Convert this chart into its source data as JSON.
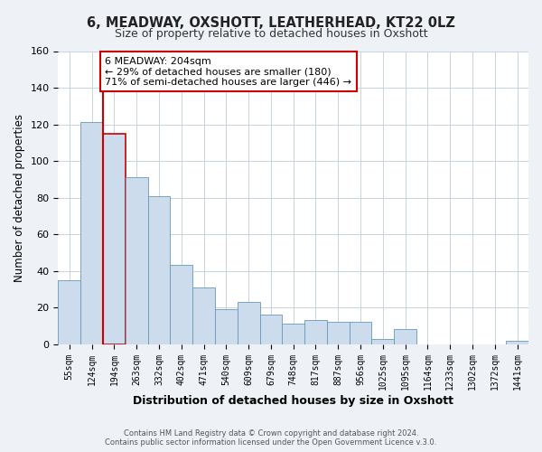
{
  "title1": "6, MEADWAY, OXSHOTT, LEATHERHEAD, KT22 0LZ",
  "title2": "Size of property relative to detached houses in Oxshott",
  "xlabel": "Distribution of detached houses by size in Oxshott",
  "ylabel": "Number of detached properties",
  "footer1": "Contains HM Land Registry data © Crown copyright and database right 2024.",
  "footer2": "Contains public sector information licensed under the Open Government Licence v.3.0.",
  "annotation_line1": "6 MEADWAY: 204sqm",
  "annotation_line2": "← 29% of detached houses are smaller (180)",
  "annotation_line3": "71% of semi-detached houses are larger (446) →",
  "bar_labels": [
    "55sqm",
    "124sqm",
    "194sqm",
    "263sqm",
    "332sqm",
    "402sqm",
    "471sqm",
    "540sqm",
    "609sqm",
    "679sqm",
    "748sqm",
    "817sqm",
    "887sqm",
    "956sqm",
    "1025sqm",
    "1095sqm",
    "1164sqm",
    "1233sqm",
    "1302sqm",
    "1372sqm",
    "1441sqm"
  ],
  "bar_heights": [
    35,
    121,
    115,
    91,
    81,
    43,
    31,
    19,
    23,
    16,
    11,
    13,
    12,
    12,
    3,
    8,
    0,
    0,
    0,
    0,
    2
  ],
  "bar_color": "#ccdcec",
  "bar_edge_color": "#6699bb",
  "highlight_bar_index": 2,
  "highlight_bar_edge_color": "#cc0000",
  "vertical_line_x": 1.5,
  "vertical_line_color": "#cc0000",
  "ylim": [
    0,
    160
  ],
  "yticks": [
    0,
    20,
    40,
    60,
    80,
    100,
    120,
    140,
    160
  ],
  "bg_color": "#eef2f7",
  "plot_bg_color": "#ffffff",
  "grid_color": "#c8d4e0",
  "annotation_box_color": "#ffffff",
  "annotation_box_edge": "#cc0000"
}
